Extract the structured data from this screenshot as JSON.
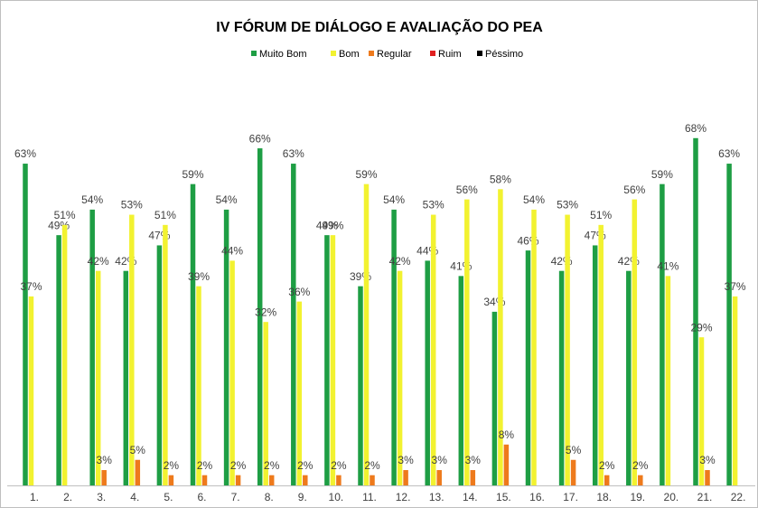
{
  "chart_data": {
    "type": "bar",
    "title": "IV FÓRUM DE DIÁLOGO E AVALIAÇÃO DO PEA",
    "categories": [
      "1.",
      "2.",
      "3.",
      "4.",
      "5.",
      "6.",
      "7.",
      "8.",
      "9.",
      "10.",
      "11.",
      "12.",
      "13.",
      "14.",
      "15.",
      "16.",
      "17.",
      "18.",
      "19.",
      "20.",
      "21.",
      "22."
    ],
    "legend": "top",
    "series": [
      {
        "name": "Muito Bom",
        "color": "#1e9e44",
        "values": [
          63,
          49,
          54,
          42,
          47,
          59,
          54,
          66,
          63,
          49,
          39,
          54,
          44,
          41,
          34,
          46,
          42,
          47,
          42,
          59,
          68,
          63
        ],
        "value_labels": [
          "63%",
          "49%",
          "54%",
          "42%",
          "47%",
          "59%",
          "54%",
          "66%",
          "63%",
          "49%",
          "39%",
          "54%",
          "44%",
          "41%",
          "34%",
          "46%",
          "42%",
          "47%",
          "42%",
          "59%",
          "68%",
          "63%"
        ]
      },
      {
        "name": "Bom",
        "color": "#f2f230",
        "values": [
          37,
          51,
          42,
          53,
          51,
          39,
          44,
          32,
          36,
          49,
          59,
          42,
          53,
          56,
          58,
          54,
          53,
          51,
          56,
          41,
          29,
          37
        ],
        "value_labels": [
          "37%",
          "51%",
          "42%",
          "53%",
          "51%",
          "39%",
          "44%",
          "32%",
          "36%",
          "49%",
          "59%",
          "42%",
          "53%",
          "56%",
          "58%",
          "54%",
          "53%",
          "51%",
          "56%",
          "41%",
          "29%",
          "37%"
        ]
      },
      {
        "name": "Regular",
        "color": "#ee7a1c",
        "values": [
          null,
          null,
          3,
          5,
          2,
          2,
          2,
          2,
          2,
          2,
          2,
          3,
          3,
          3,
          8,
          null,
          5,
          2,
          2,
          null,
          3,
          null
        ],
        "value_labels": [
          null,
          null,
          "3%",
          "5%",
          "2%",
          "2%",
          "2%",
          "2%",
          "2%",
          "2%",
          "2%",
          "3%",
          "3%",
          "3%",
          "8%",
          null,
          "5%",
          "2%",
          "2%",
          null,
          "3%",
          null
        ]
      },
      {
        "name": "Ruim",
        "color": "#e02020",
        "values": [
          null,
          null,
          null,
          null,
          null,
          null,
          null,
          null,
          null,
          null,
          null,
          null,
          null,
          null,
          null,
          null,
          null,
          null,
          null,
          null,
          null,
          null
        ]
      },
      {
        "name": "Péssimo",
        "color": "#000000",
        "values": [
          null,
          null,
          null,
          null,
          null,
          null,
          null,
          null,
          null,
          null,
          null,
          null,
          null,
          null,
          null,
          null,
          null,
          null,
          null,
          null,
          null,
          null
        ]
      }
    ]
  }
}
